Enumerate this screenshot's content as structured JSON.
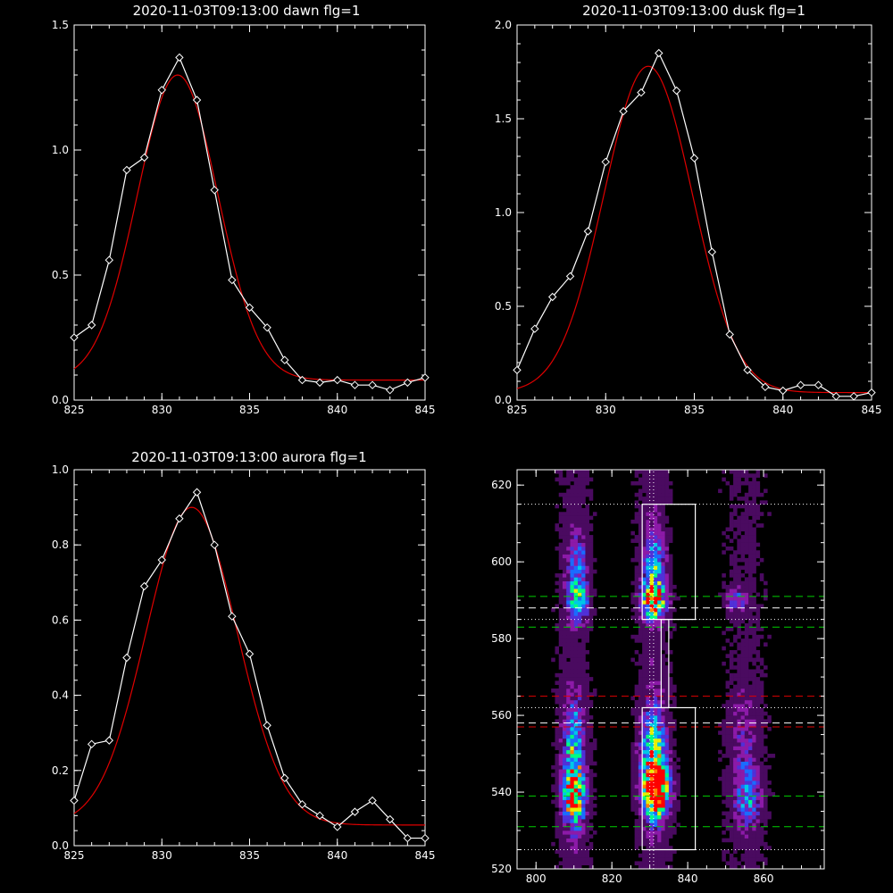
{
  "chart_data": [
    {
      "type": "line",
      "title": "2020-11-03T09:13:00 dawn flg=1",
      "xlim": [
        825,
        845
      ],
      "ylim": [
        0,
        1.5
      ],
      "xticks": [
        "825",
        "830",
        "835",
        "840",
        "845"
      ],
      "yticks": [
        "0.0",
        "0.5",
        "1.0",
        "1.5"
      ],
      "series": [
        {
          "role": "observed",
          "color": "#ffffff",
          "marker": "diamond",
          "x": [
            825,
            826,
            827,
            828,
            829,
            830,
            831,
            832,
            833,
            834,
            835,
            836,
            837,
            838,
            839,
            840,
            841,
            842,
            843,
            844,
            845
          ],
          "y": [
            0.25,
            0.3,
            0.56,
            0.92,
            0.97,
            1.24,
            1.37,
            1.2,
            0.84,
            0.48,
            0.37,
            0.29,
            0.16,
            0.08,
            0.07,
            0.08,
            0.06,
            0.06,
            0.04,
            0.07,
            0.09
          ]
        },
        {
          "role": "fit",
          "color": "#e00000",
          "gaussian": {
            "amp": 1.22,
            "center": 830.9,
            "sigma": 2.3,
            "base": 0.08
          }
        }
      ]
    },
    {
      "type": "line",
      "title": "2020-11-03T09:13:00 dusk flg=1",
      "xlim": [
        825,
        845
      ],
      "ylim": [
        0,
        2.0
      ],
      "xticks": [
        "825",
        "830",
        "835",
        "840",
        "845"
      ],
      "yticks": [
        "0.0",
        "0.5",
        "1.0",
        "1.5",
        "2.0"
      ],
      "series": [
        {
          "role": "observed",
          "color": "#ffffff",
          "marker": "diamond",
          "x": [
            825,
            826,
            827,
            828,
            829,
            830,
            831,
            832,
            833,
            834,
            835,
            836,
            837,
            838,
            839,
            840,
            841,
            842,
            843,
            844,
            845
          ],
          "y": [
            0.16,
            0.38,
            0.55,
            0.66,
            0.9,
            1.27,
            1.54,
            1.64,
            1.85,
            1.65,
            1.29,
            0.79,
            0.35,
            0.16,
            0.07,
            0.05,
            0.08,
            0.08,
            0.02,
            0.02,
            0.04
          ]
        },
        {
          "role": "fit",
          "color": "#e00000",
          "gaussian": {
            "amp": 1.74,
            "center": 832.4,
            "sigma": 2.5,
            "base": 0.04
          }
        }
      ]
    },
    {
      "type": "line",
      "title": "2020-11-03T09:13:00 aurora flg=1",
      "xlim": [
        825,
        845
      ],
      "ylim": [
        0,
        1.0
      ],
      "xticks": [
        "825",
        "830",
        "835",
        "840",
        "845"
      ],
      "yticks": [
        "0.0",
        "0.2",
        "0.4",
        "0.6",
        "0.8",
        "1.0"
      ],
      "series": [
        {
          "role": "observed",
          "color": "#ffffff",
          "marker": "diamond",
          "x": [
            825,
            826,
            827,
            828,
            829,
            830,
            831,
            832,
            833,
            834,
            835,
            836,
            837,
            838,
            839,
            840,
            841,
            842,
            843,
            844,
            845
          ],
          "y": [
            0.12,
            0.27,
            0.28,
            0.5,
            0.69,
            0.76,
            0.87,
            0.94,
            0.8,
            0.61,
            0.51,
            0.32,
            0.18,
            0.11,
            0.08,
            0.05,
            0.09,
            0.12,
            0.07,
            0.02,
            0.02
          ]
        },
        {
          "role": "fit",
          "color": "#e00000",
          "gaussian": {
            "amp": 0.845,
            "center": 831.7,
            "sigma": 2.6,
            "base": 0.055
          }
        }
      ]
    },
    {
      "type": "heatmap",
      "xlim": [
        795,
        876
      ],
      "ylim": [
        520,
        624
      ],
      "xticks": [
        "800",
        "820",
        "840",
        "860"
      ],
      "yticks": [
        "520",
        "540",
        "560",
        "580",
        "600",
        "620"
      ],
      "colormap": [
        "#000000",
        "#4a0a60",
        "#8c1aa8",
        "#5030d8",
        "#1a6cff",
        "#00c8e6",
        "#00ff80",
        "#e6f000",
        "#ff8000",
        "#ff0000"
      ],
      "blobs": [
        {
          "x": 810,
          "y": 539,
          "sx": 2.0,
          "sy": 6.0,
          "amp": 0.75
        },
        {
          "x": 810,
          "y": 553,
          "sx": 2.0,
          "sy": 8.0,
          "amp": 0.42
        },
        {
          "x": 811,
          "y": 590,
          "sx": 2.0,
          "sy": 4.0,
          "amp": 0.5
        },
        {
          "x": 811,
          "y": 600,
          "sx": 2.0,
          "sy": 5.0,
          "amp": 0.3
        },
        {
          "x": 832,
          "y": 540,
          "sx": 2.2,
          "sy": 4.0,
          "amp": 1.0
        },
        {
          "x": 831,
          "y": 548,
          "sx": 2.4,
          "sy": 9.0,
          "amp": 0.62
        },
        {
          "x": 831,
          "y": 590,
          "sx": 2.2,
          "sy": 3.5,
          "amp": 0.78
        },
        {
          "x": 831,
          "y": 600,
          "sx": 2.0,
          "sy": 6.0,
          "amp": 0.38
        },
        {
          "x": 856,
          "y": 539,
          "sx": 2.5,
          "sy": 6.0,
          "amp": 0.38
        },
        {
          "x": 855,
          "y": 555,
          "sx": 2.5,
          "sy": 8.0,
          "amp": 0.18
        },
        {
          "x": 853,
          "y": 590,
          "sx": 2.0,
          "sy": 2.0,
          "amp": 0.3
        }
      ],
      "overlays": {
        "white_dotted_h": [
          525,
          562,
          585,
          615
        ],
        "white_dotted_v": [
          830,
          831
        ],
        "white_dashed_h": [
          558,
          588
        ],
        "green_dashed_h": [
          531,
          539,
          583,
          591
        ],
        "red_dashed_h": [
          557,
          565
        ],
        "boxes": [
          {
            "x0": 828,
            "x1": 842,
            "y0": 525,
            "y1": 562
          },
          {
            "x0": 833,
            "x1": 835,
            "y0": 562,
            "y1": 585
          },
          {
            "x0": 828,
            "x1": 842,
            "y0": 585,
            "y1": 615
          }
        ]
      }
    }
  ]
}
